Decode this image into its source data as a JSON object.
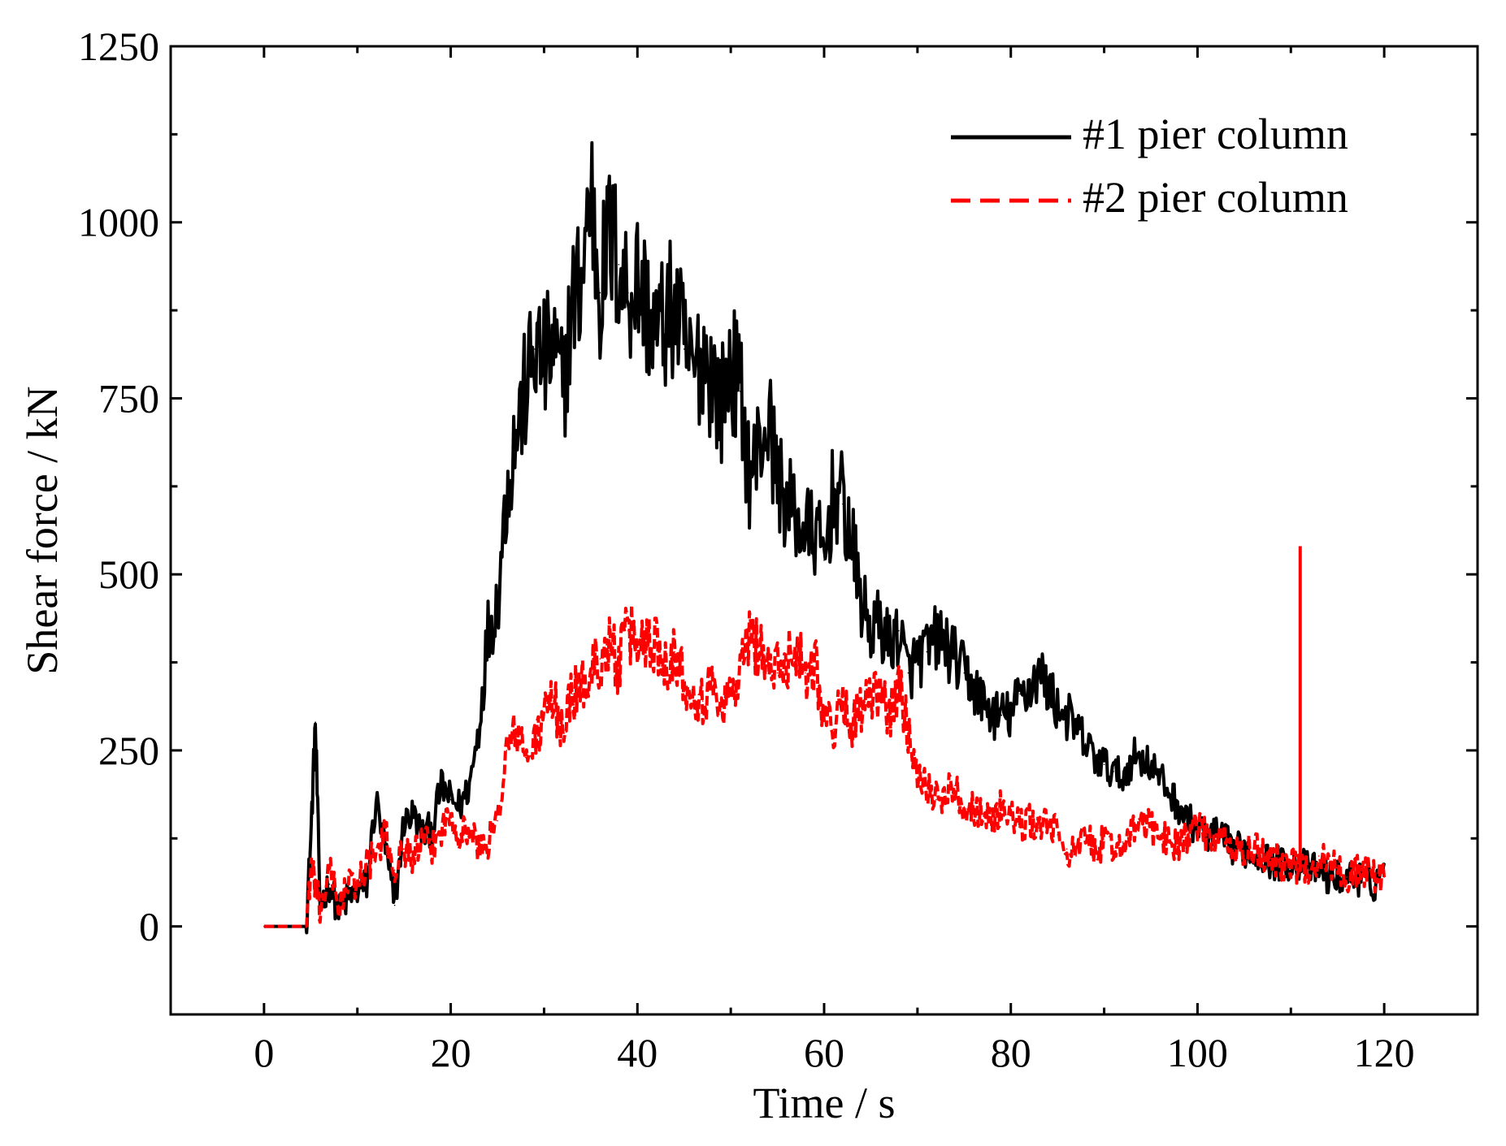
{
  "chart_data": {
    "type": "line",
    "title": "",
    "xlabel": "Time / s",
    "ylabel": "Shear force / kN",
    "xlim": [
      -10,
      130
    ],
    "ylim": [
      -125,
      1250
    ],
    "xticks": [
      0,
      20,
      40,
      60,
      80,
      100,
      120
    ],
    "yticks": [
      0,
      250,
      500,
      750,
      1000,
      1250
    ],
    "x_tick_labels": [
      "0",
      "20",
      "40",
      "60",
      "80",
      "100",
      "120"
    ],
    "y_tick_labels": [
      "0",
      "250",
      "500",
      "750",
      "1000",
      "1250"
    ],
    "grid": false,
    "legend_position": "top-right",
    "series": [
      {
        "name": "#1 pier column",
        "color": "#000000",
        "style": "solid",
        "x": [
          0,
          2,
          4.5,
          5,
          5.5,
          6,
          7,
          8,
          9,
          10,
          11,
          12,
          13,
          14,
          15,
          16,
          17,
          18,
          19,
          20,
          21,
          22,
          23,
          24,
          25,
          26,
          27,
          28,
          29,
          30,
          31,
          32,
          33,
          34,
          35,
          36,
          37,
          38,
          39,
          40,
          41,
          42,
          43,
          44,
          45,
          46,
          47,
          48,
          49,
          50,
          51,
          52,
          53,
          54,
          55,
          56,
          57,
          58,
          59,
          60,
          61,
          62,
          63,
          64,
          65,
          66,
          67,
          68,
          69,
          70,
          71,
          72,
          73,
          74,
          75,
          76,
          77,
          78,
          79,
          80,
          81,
          82,
          83,
          84,
          85,
          86,
          87,
          88,
          89,
          90,
          91,
          92,
          93,
          94,
          95,
          96,
          97,
          98,
          99,
          100,
          101,
          102,
          103,
          104,
          105,
          106,
          107,
          108,
          109,
          110,
          111,
          112,
          113,
          114,
          115,
          116,
          117,
          118,
          119,
          120
        ],
        "values": [
          0,
          0,
          0,
          120,
          290,
          30,
          60,
          20,
          40,
          50,
          60,
          180,
          110,
          30,
          150,
          160,
          130,
          140,
          200,
          180,
          170,
          200,
          280,
          420,
          460,
          620,
          700,
          760,
          820,
          800,
          820,
          760,
          880,
          920,
          1050,
          900,
          980,
          940,
          900,
          920,
          880,
          840,
          860,
          880,
          820,
          780,
          820,
          780,
          740,
          800,
          760,
          640,
          680,
          720,
          640,
          600,
          580,
          560,
          560,
          520,
          620,
          600,
          540,
          460,
          420,
          430,
          400,
          420,
          360,
          380,
          390,
          410,
          400,
          380,
          360,
          340,
          320,
          300,
          300,
          300,
          330,
          340,
          360,
          340,
          310,
          300,
          280,
          260,
          240,
          230,
          220,
          210,
          240,
          240,
          230,
          210,
          190,
          170,
          150,
          140,
          130,
          130,
          120,
          110,
          110,
          100,
          100,
          90,
          90,
          90,
          90,
          80,
          80,
          70,
          70,
          70,
          70,
          60,
          60,
          90
        ]
      },
      {
        "name": "#2 pier column",
        "color": "#ff0000",
        "style": "dashed",
        "x": [
          0,
          2,
          4.5,
          5,
          5.5,
          6,
          7,
          8,
          9,
          10,
          11,
          12,
          13,
          14,
          15,
          16,
          17,
          18,
          19,
          20,
          21,
          22,
          23,
          24,
          25,
          26,
          27,
          28,
          29,
          30,
          31,
          32,
          33,
          34,
          35,
          36,
          37,
          38,
          39,
          40,
          41,
          42,
          43,
          44,
          45,
          46,
          47,
          48,
          49,
          50,
          51,
          52,
          53,
          54,
          55,
          56,
          57,
          58,
          59,
          60,
          61,
          62,
          63,
          64,
          65,
          66,
          67,
          68,
          69,
          70,
          71,
          72,
          73,
          74,
          75,
          76,
          77,
          78,
          79,
          80,
          81,
          82,
          83,
          84,
          85,
          86,
          87,
          88,
          89,
          90,
          91,
          92,
          93,
          94,
          95,
          96,
          97,
          98,
          99,
          100,
          101,
          102,
          103,
          104,
          105,
          106,
          107,
          108,
          109,
          110,
          111,
          112,
          113,
          114,
          115,
          116,
          117,
          118,
          119,
          120
        ],
        "values": [
          0,
          0,
          0,
          80,
          60,
          20,
          80,
          30,
          60,
          60,
          90,
          100,
          130,
          80,
          110,
          100,
          120,
          110,
          140,
          160,
          130,
          140,
          110,
          120,
          150,
          250,
          280,
          240,
          260,
          300,
          320,
          280,
          330,
          340,
          360,
          380,
          400,
          370,
          420,
          400,
          410,
          400,
          380,
          390,
          350,
          340,
          320,
          340,
          320,
          330,
          360,
          410,
          400,
          370,
          360,
          380,
          400,
          360,
          380,
          300,
          280,
          320,
          290,
          310,
          320,
          330,
          300,
          340,
          280,
          220,
          200,
          180,
          190,
          200,
          170,
          170,
          160,
          150,
          170,
          160,
          140,
          150,
          140,
          150,
          130,
          110,
          100,
          130,
          110,
          120,
          110,
          120,
          130,
          150,
          140,
          130,
          120,
          120,
          130,
          140,
          130,
          120,
          120,
          110,
          100,
          110,
          100,
          100,
          90,
          90,
          80,
          80,
          100,
          90,
          80,
          70,
          80,
          80,
          70,
          70
        ]
      }
    ],
    "annotations": [
      {
        "series": "#2 pier column",
        "x": 111,
        "y": 540,
        "label": ""
      }
    ]
  }
}
